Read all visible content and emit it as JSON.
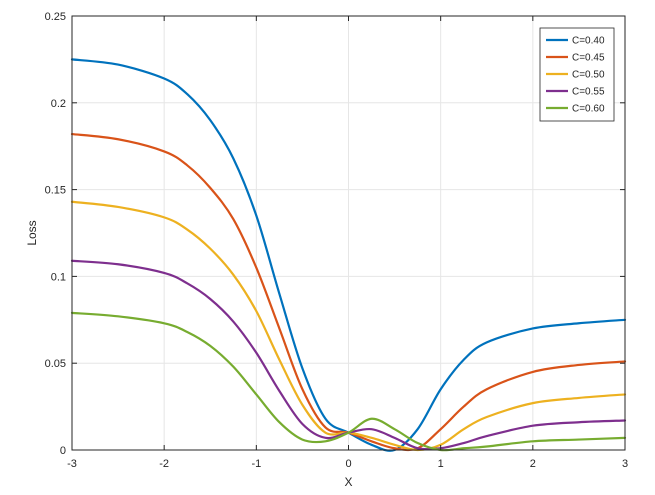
{
  "chart_data": {
    "type": "line",
    "xlabel": "X",
    "ylabel": "Loss",
    "xlim": [
      -3,
      3
    ],
    "ylim": [
      0,
      0.25
    ],
    "xticks": [
      -3,
      -2,
      -1,
      0,
      1,
      2,
      3
    ],
    "xtick_labels": [
      "-3",
      "-2",
      "-1",
      "0",
      "1",
      "2",
      "3"
    ],
    "yticks": [
      0,
      0.05,
      0.1,
      0.15,
      0.2,
      0.25
    ],
    "ytick_labels": [
      "0",
      "0.05",
      "0.1",
      "0.15",
      "0.2",
      "0.25"
    ],
    "grid": true,
    "legend_position": "top-right",
    "series": [
      {
        "name": "C=0.40",
        "color": "#0072BD",
        "x": [
          -3,
          -2.5,
          -2,
          -1.75,
          -1.5,
          -1.25,
          -1,
          -0.75,
          -0.5,
          -0.25,
          0,
          0.25,
          0.5,
          0.75,
          1,
          1.25,
          1.5,
          2,
          2.5,
          3
        ],
        "y": [
          0.225,
          0.222,
          0.214,
          0.205,
          0.19,
          0.168,
          0.135,
          0.09,
          0.047,
          0.018,
          0.01,
          0.003,
          0.0,
          0.012,
          0.035,
          0.052,
          0.062,
          0.07,
          0.073,
          0.075
        ]
      },
      {
        "name": "C=0.45",
        "color": "#D95319",
        "x": [
          -3,
          -2.5,
          -2,
          -1.75,
          -1.5,
          -1.25,
          -1,
          -0.75,
          -0.5,
          -0.25,
          0,
          0.25,
          0.5,
          0.75,
          1,
          1.25,
          1.5,
          2,
          2.5,
          3
        ],
        "y": [
          0.182,
          0.179,
          0.172,
          0.164,
          0.151,
          0.133,
          0.105,
          0.07,
          0.035,
          0.013,
          0.01,
          0.005,
          0.001,
          0.001,
          0.012,
          0.025,
          0.035,
          0.045,
          0.049,
          0.051
        ]
      },
      {
        "name": "C=0.50",
        "color": "#EDB120",
        "x": [
          -3,
          -2.5,
          -2,
          -1.75,
          -1.5,
          -1.25,
          -1,
          -0.75,
          -0.5,
          -0.25,
          0,
          0.25,
          0.5,
          0.75,
          1,
          1.25,
          1.5,
          2,
          2.5,
          3
        ],
        "y": [
          0.143,
          0.14,
          0.134,
          0.127,
          0.116,
          0.101,
          0.08,
          0.052,
          0.026,
          0.01,
          0.01,
          0.007,
          0.003,
          0.0,
          0.003,
          0.012,
          0.019,
          0.027,
          0.03,
          0.032
        ]
      },
      {
        "name": "C=0.55",
        "color": "#7E2F8E",
        "x": [
          -3,
          -2.5,
          -2,
          -1.75,
          -1.5,
          -1.25,
          -1,
          -0.75,
          -0.5,
          -0.25,
          0,
          0.25,
          0.5,
          0.75,
          1,
          1.25,
          1.5,
          2,
          2.5,
          3
        ],
        "y": [
          0.109,
          0.107,
          0.102,
          0.096,
          0.087,
          0.074,
          0.056,
          0.034,
          0.015,
          0.007,
          0.01,
          0.012,
          0.007,
          0.001,
          0.001,
          0.004,
          0.008,
          0.014,
          0.016,
          0.017
        ]
      },
      {
        "name": "C=0.60",
        "color": "#77AC30",
        "x": [
          -3,
          -2.5,
          -2,
          -1.75,
          -1.5,
          -1.25,
          -1,
          -0.75,
          -0.5,
          -0.25,
          0,
          0.25,
          0.5,
          0.75,
          1,
          1.25,
          1.5,
          2,
          2.5,
          3
        ],
        "y": [
          0.079,
          0.077,
          0.073,
          0.068,
          0.06,
          0.048,
          0.032,
          0.016,
          0.006,
          0.005,
          0.01,
          0.018,
          0.012,
          0.004,
          0.0,
          0.001,
          0.002,
          0.005,
          0.006,
          0.007
        ]
      }
    ]
  }
}
